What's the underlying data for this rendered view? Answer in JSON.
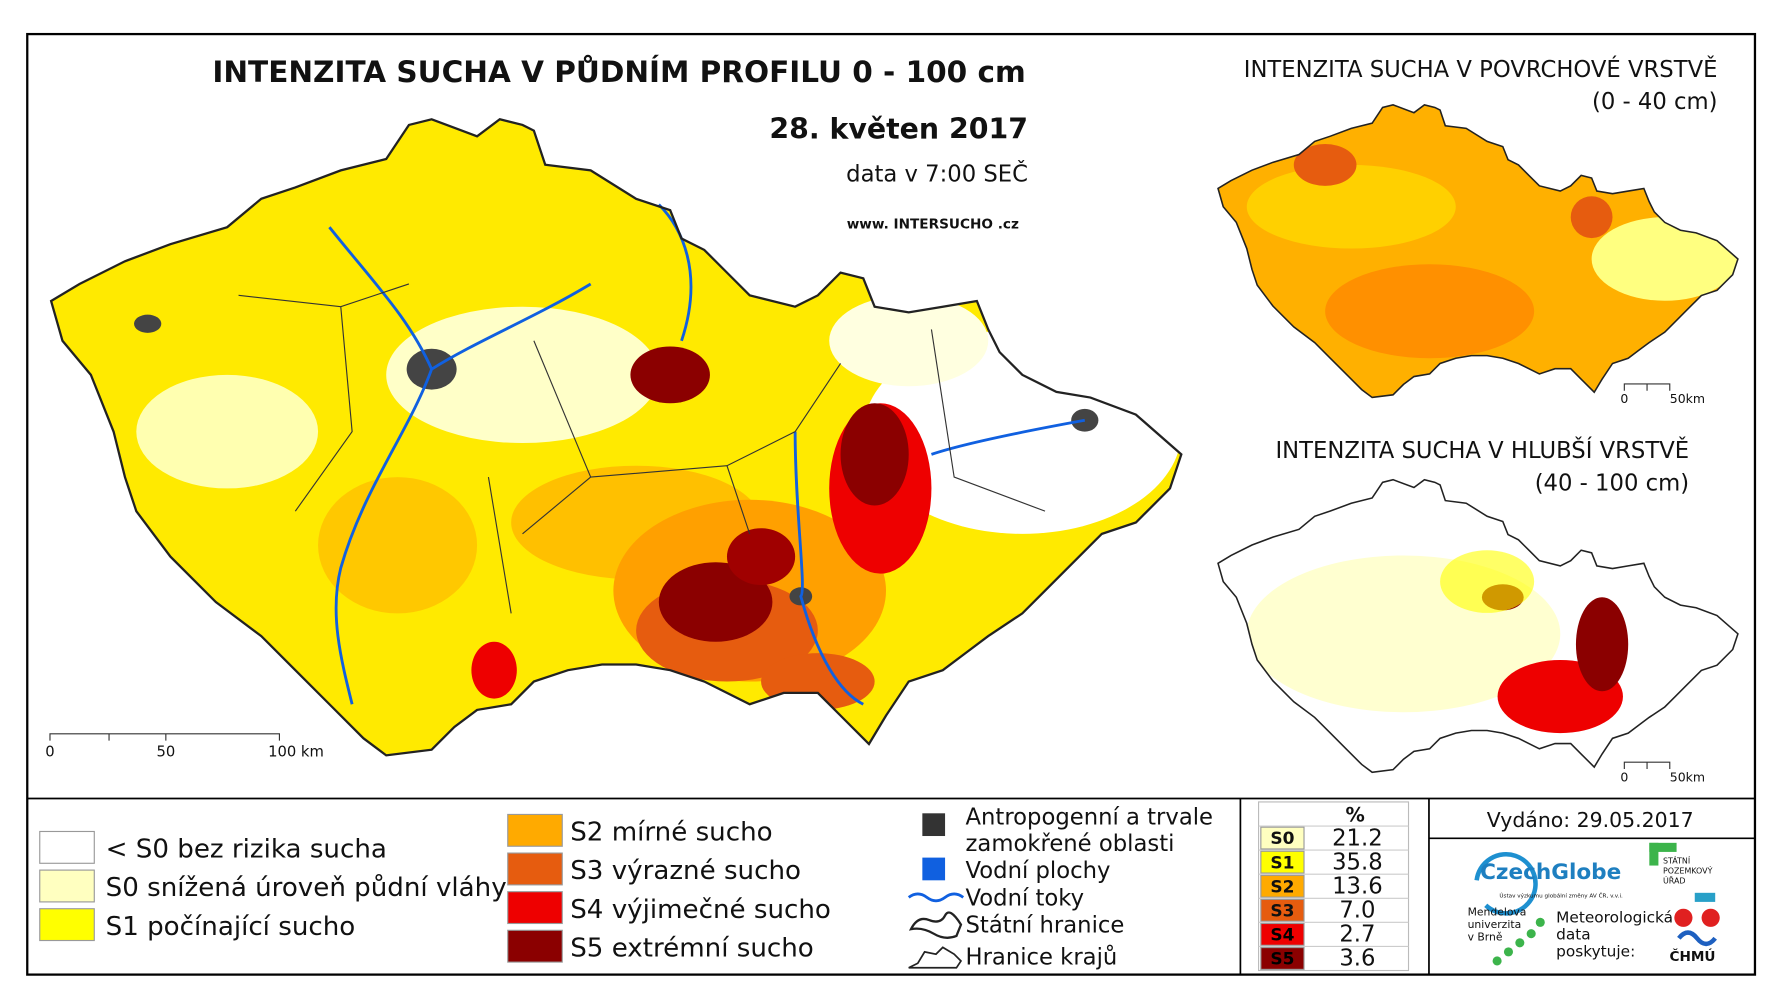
{
  "title": "INTENZITA SUCHA V PŮDNÍM PROFILU 0 - 100 cm",
  "date": "28. květen 2017",
  "time_note": "data v 7:00 SEČ",
  "website": "www. INTERSUCHO .cz",
  "main_scale": [
    "0",
    "50",
    "100 km"
  ],
  "insets": [
    {
      "title": "INTENZITA SUCHA V POVRCHOVÉ VRSTVĚ",
      "depth": "(0 - 40 cm)",
      "scale": [
        "0",
        "50km"
      ]
    },
    {
      "title": "INTENZITA SUCHA V HLUBŠÍ VRSTVĚ",
      "depth": "(40 - 100 cm)",
      "scale": [
        "0",
        "50km"
      ]
    }
  ],
  "legend": [
    {
      "label": "< S0 bez rizika sucha",
      "color": "#ffffff"
    },
    {
      "label": "S0 snížená úroveň půdní vláhy",
      "color": "#ffffc0"
    },
    {
      "label": "S1 počínající sucho",
      "color": "#ffff00"
    },
    {
      "label": "S2 mírné sucho",
      "color": "#ffaa00"
    },
    {
      "label": "S3 výrazné sucho",
      "color": "#e65c0f"
    },
    {
      "label": "S4 výjimečné sucho",
      "color": "#ee0000"
    },
    {
      "label": "S5 extrémní sucho",
      "color": "#8b0000"
    }
  ],
  "symbols": [
    {
      "lines": [
        "Antropogenní a trvale",
        "zamokřené oblasti"
      ]
    },
    {
      "lines": [
        "Vodní plochy"
      ]
    },
    {
      "lines": [
        "Vodní toky"
      ]
    },
    {
      "lines": [
        "Státní hranice"
      ]
    },
    {
      "lines": [
        "Hranice krajů"
      ]
    }
  ],
  "table": {
    "header": "%",
    "rows": [
      [
        "S0",
        "21.2"
      ],
      [
        "S1",
        "35.8"
      ],
      [
        "S2",
        "13.6"
      ],
      [
        "S3",
        "7.0"
      ],
      [
        "S4",
        "2.7"
      ],
      [
        "S5",
        "3.6"
      ]
    ]
  },
  "issued": "Vydáno: 29.05.2017",
  "logos": {
    "czechglobe": "CzechGlobe",
    "czechglobe_sub": "Ústav výzkumu globální změny AV ČR, v.v.i.",
    "spu": [
      "STÁTNÍ",
      "POZEMKOVÝ",
      "ÚŘAD"
    ],
    "mendelu": [
      "Mendelova",
      "univerzita",
      "v Brně"
    ],
    "chmu_note": [
      "Meteorologická",
      "data",
      "poskytuje:"
    ],
    "chmu": "ČHMÚ"
  }
}
